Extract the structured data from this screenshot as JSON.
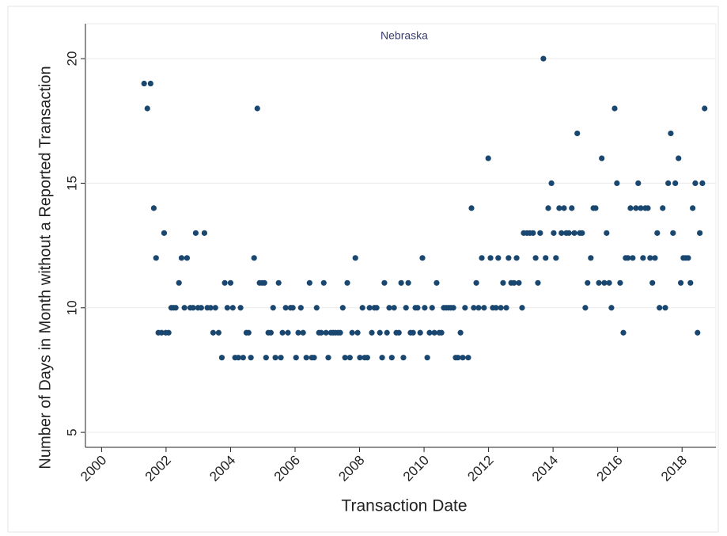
{
  "chart_data": {
    "type": "scatter",
    "title": "Nebraska",
    "x_label": "Transaction Date",
    "y_label": "Number of Days in Month without a Reported Transaction",
    "color": "#1a476f",
    "grid": true,
    "xlim": [
      1999.5,
      2019.05
    ],
    "ylim": [
      4.4,
      21.4
    ],
    "xticks": [
      2000,
      2002,
      2004,
      2006,
      2008,
      2010,
      2012,
      2014,
      2016,
      2018
    ],
    "yticks": [
      5,
      10,
      15,
      20
    ],
    "x": [
      2001.32,
      2001.52,
      2001.42,
      2001.62,
      2001.69,
      2001.76,
      2001.86,
      2001.94,
      2001.99,
      2002.08,
      2002.16,
      2002.23,
      2002.3,
      2002.4,
      2002.48,
      2002.57,
      2002.65,
      2002.75,
      2002.84,
      2002.92,
      2002.99,
      2003.09,
      2003.19,
      2003.28,
      2003.38,
      2003.46,
      2003.53,
      2003.63,
      2003.73,
      2003.82,
      2003.9,
      2004.0,
      2004.07,
      2004.14,
      2004.24,
      2004.31,
      2004.39,
      2004.49,
      2004.56,
      2004.63,
      2004.73,
      2004.83,
      2004.9,
      2004.98,
      2005.05,
      2005.1,
      2005.17,
      2005.25,
      2005.32,
      2005.39,
      2005.49,
      2005.56,
      2005.61,
      2005.71,
      2005.78,
      2005.86,
      2005.93,
      2006.03,
      2006.1,
      2006.18,
      2006.25,
      2006.35,
      2006.45,
      2006.52,
      2006.59,
      2006.67,
      2006.74,
      2006.81,
      2006.89,
      2006.96,
      2007.03,
      2007.11,
      2007.18,
      2007.25,
      2007.33,
      2007.4,
      2007.48,
      2007.55,
      2007.62,
      2007.7,
      2007.77,
      2007.87,
      2007.94,
      2008.01,
      2008.09,
      2008.16,
      2008.24,
      2008.31,
      2008.38,
      2008.46,
      2008.53,
      2008.63,
      2008.7,
      2008.77,
      2008.85,
      2008.92,
      2009.0,
      2009.07,
      2009.14,
      2009.22,
      2009.29,
      2009.36,
      2009.44,
      2009.51,
      2009.58,
      2009.66,
      2009.73,
      2009.8,
      2009.88,
      2009.95,
      2010.02,
      2010.1,
      2010.17,
      2010.25,
      2010.32,
      2010.39,
      2010.47,
      2010.54,
      2010.61,
      2010.69,
      2010.76,
      2010.83,
      2010.91,
      2010.98,
      2011.05,
      2011.13,
      2011.2,
      2011.27,
      2011.37,
      2011.47,
      2011.54,
      2011.62,
      2011.69,
      2011.79,
      2011.86,
      2011.99,
      2012.06,
      2012.13,
      2012.23,
      2012.3,
      2012.38,
      2012.45,
      2012.55,
      2012.62,
      2012.7,
      2012.79,
      2012.87,
      2012.94,
      2013.04,
      2013.09,
      2013.19,
      2013.28,
      2013.38,
      2013.46,
      2013.53,
      2013.6,
      2013.7,
      2013.77,
      2013.85,
      2013.95,
      2014.02,
      2014.09,
      2014.19,
      2014.26,
      2014.34,
      2014.41,
      2014.49,
      2014.58,
      2014.66,
      2014.75,
      2014.83,
      2014.9,
      2015.0,
      2015.07,
      2015.17,
      2015.25,
      2015.32,
      2015.42,
      2015.51,
      2015.59,
      2015.66,
      2015.74,
      2015.81,
      2015.91,
      2015.98,
      2016.08,
      2016.18,
      2016.25,
      2016.32,
      2016.4,
      2016.47,
      2016.57,
      2016.64,
      2016.72,
      2016.79,
      2016.86,
      2016.94,
      2017.01,
      2017.08,
      2017.16,
      2017.23,
      2017.3,
      2017.4,
      2017.48,
      2017.57,
      2017.65,
      2017.72,
      2017.79,
      2017.89,
      2017.96,
      2018.04,
      2018.11,
      2018.19,
      2018.26,
      2018.33,
      2018.41,
      2018.48,
      2018.55,
      2018.63,
      2018.7
    ],
    "values": [
      19,
      19,
      18,
      14,
      12,
      9,
      9,
      13,
      9,
      9,
      10,
      10,
      10,
      11,
      12,
      10,
      12,
      10,
      10,
      13,
      10,
      10,
      13,
      10,
      10,
      9,
      10,
      9,
      8,
      11,
      10,
      11,
      10,
      8,
      8,
      10,
      8,
      9,
      9,
      8,
      12,
      18,
      11,
      11,
      11,
      8,
      9,
      9,
      10,
      8,
      11,
      8,
      9,
      10,
      9,
      10,
      10,
      8,
      9,
      10,
      9,
      8,
      11,
      8,
      8,
      10,
      9,
      9,
      11,
      9,
      8,
      9,
      9,
      9,
      9,
      9,
      10,
      8,
      11,
      8,
      9,
      12,
      9,
      8,
      10,
      8,
      8,
      10,
      9,
      10,
      10,
      9,
      8,
      11,
      9,
      10,
      8,
      10,
      9,
      9,
      11,
      8,
      10,
      11,
      9,
      9,
      10,
      10,
      9,
      12,
      10,
      8,
      9,
      10,
      9,
      11,
      9,
      9,
      10,
      10,
      10,
      10,
      10,
      8,
      8,
      9,
      8,
      10,
      8,
      14,
      10,
      11,
      10,
      12,
      10,
      16,
      12,
      10,
      10,
      12,
      10,
      11,
      10,
      12,
      11,
      11,
      12,
      11,
      10,
      13,
      13,
      13,
      13,
      12,
      11,
      13,
      20,
      12,
      14,
      15,
      13,
      12,
      14,
      13,
      14,
      13,
      13,
      14,
      13,
      17,
      13,
      13,
      10,
      11,
      12,
      14,
      14,
      11,
      16,
      11,
      13,
      11,
      10,
      18,
      15,
      11,
      9,
      12,
      12,
      14,
      12,
      14,
      15,
      14,
      12,
      14,
      14,
      12,
      11,
      12,
      13,
      10,
      14,
      10,
      15,
      17,
      13,
      15,
      16,
      11,
      12,
      12,
      12,
      11,
      14,
      15,
      9,
      13,
      15,
      18
    ]
  }
}
